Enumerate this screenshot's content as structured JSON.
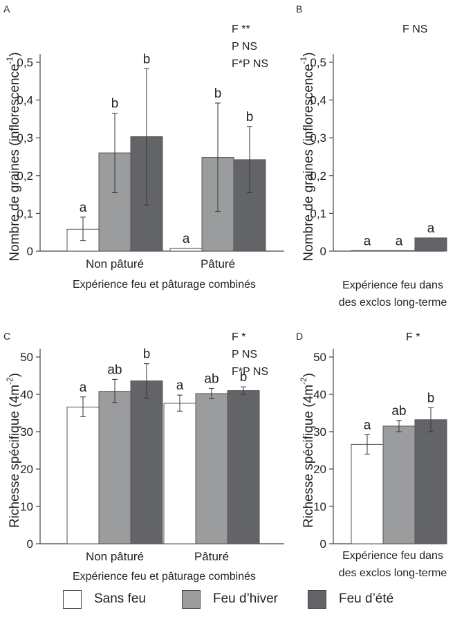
{
  "colors": {
    "sans_feu": "#ffffff",
    "feu_hiver": "#9b9c9e",
    "feu_ete": "#636467",
    "axis": "#444444",
    "bar_stroke": "#555555"
  },
  "legend": [
    {
      "name": "Sans feu",
      "color_key": "sans_feu"
    },
    {
      "name": "Feu d’hiver",
      "color_key": "feu_hiver"
    },
    {
      "name": "Feu d’été",
      "color_key": "feu_ete"
    }
  ],
  "chart_data": [
    {
      "panel": "A",
      "type": "bar",
      "ylabel": "Nombre de graines (inflorescence-1)",
      "ylabel_main": "Nombre de graines (inflorescence",
      "ylabel_sup": "-1",
      "ylabel_close": ")",
      "xlabel": "Expérience feu et pâturage combinés",
      "xlabel_lines": [
        "Expérience feu et pâturage combinés"
      ],
      "ylim": [
        0,
        0.5
      ],
      "yticks": [
        0,
        0.1,
        0.2,
        0.3,
        0.4,
        0.5
      ],
      "ytick_labels": [
        "0",
        "0,1",
        "0,2",
        "0,3",
        "0,4",
        "0,5"
      ],
      "stats": [
        "F **",
        "P NS",
        "F*P NS"
      ],
      "categories": [
        "Non pâturé",
        "Pâturé"
      ],
      "series": [
        {
          "name": "Sans feu",
          "values": [
            0.058,
            0.007
          ],
          "err_low": [
            0.028,
            0.0
          ],
          "err_high": [
            0.09,
            0.0
          ],
          "letters": [
            "a",
            "a"
          ]
        },
        {
          "name": "Feu d’hiver",
          "values": [
            0.26,
            0.248
          ],
          "err_low": [
            0.155,
            0.105
          ],
          "err_high": [
            0.365,
            0.392
          ],
          "letters": [
            "b",
            "b"
          ]
        },
        {
          "name": "Feu d’été",
          "values": [
            0.303,
            0.242
          ],
          "err_low": [
            0.122,
            0.155
          ],
          "err_high": [
            0.483,
            0.33
          ],
          "letters": [
            "b",
            "b"
          ]
        }
      ]
    },
    {
      "panel": "B",
      "type": "bar",
      "ylabel": "Nombre de graines (inflorescence-1)",
      "ylabel_main": "Nombre de graines (inflorescence",
      "ylabel_sup": "-1",
      "ylabel_close": ")",
      "xlabel": "Expérience feu dans des exclos long-terme",
      "xlabel_lines": [
        "Expérience feu dans",
        "des exclos long-terme"
      ],
      "ylim": [
        0,
        0.5
      ],
      "yticks": [
        0,
        0.1,
        0.2,
        0.3,
        0.4,
        0.5
      ],
      "ytick_labels": [
        "0",
        "0,1",
        "0,2",
        "0,3",
        "0,4",
        "0,5"
      ],
      "stats": [
        "F NS"
      ],
      "categories": [
        ""
      ],
      "series": [
        {
          "name": "Sans feu",
          "values": [
            0.001
          ],
          "err_low": [
            0.001
          ],
          "err_high": [
            0.001
          ],
          "letters": [
            "a"
          ]
        },
        {
          "name": "Feu d’hiver",
          "values": [
            0.001
          ],
          "err_low": [
            0.001
          ],
          "err_high": [
            0.001
          ],
          "letters": [
            "a"
          ]
        },
        {
          "name": "Feu d’été",
          "values": [
            0.035
          ],
          "err_low": [
            0.035
          ],
          "err_high": [
            0.035
          ],
          "letters": [
            "a"
          ]
        }
      ]
    },
    {
      "panel": "C",
      "type": "bar",
      "ylabel": "Richesse spécifique (4m-2)",
      "ylabel_main": "Richesse spécifique (4m",
      "ylabel_sup": "-2",
      "ylabel_close": ")",
      "xlabel": "Expérience feu et pâturage combinés",
      "xlabel_lines": [
        "Expérience feu et pâturage combinés"
      ],
      "ylim": [
        0,
        50
      ],
      "yticks": [
        0,
        10,
        20,
        30,
        40,
        50
      ],
      "ytick_labels": [
        "0",
        "10",
        "20",
        "30",
        "40",
        "50"
      ],
      "stats": [
        "F *",
        "P NS",
        "F*P NS"
      ],
      "categories": [
        "Non pâturé",
        "Pâturé"
      ],
      "series": [
        {
          "name": "Sans feu",
          "values": [
            36.6,
            37.6
          ],
          "err_low": [
            34.0,
            35.5
          ],
          "err_high": [
            39.3,
            39.8
          ],
          "letters": [
            "a",
            "a"
          ]
        },
        {
          "name": "Feu d’hiver",
          "values": [
            40.8,
            40.2
          ],
          "err_low": [
            37.8,
            38.8
          ],
          "err_high": [
            44.0,
            41.6
          ],
          "letters": [
            "ab",
            "ab"
          ]
        },
        {
          "name": "Feu d’été",
          "values": [
            43.6,
            41.0
          ],
          "err_low": [
            39.0,
            40.0
          ],
          "err_high": [
            48.2,
            42.0
          ],
          "letters": [
            "b",
            "b"
          ]
        }
      ]
    },
    {
      "panel": "D",
      "type": "bar",
      "ylabel": "Richesse spécifique (4m-2)",
      "ylabel_main": "Richesse spécifique (4m",
      "ylabel_sup": "-2",
      "ylabel_close": ")",
      "xlabel": "Expérience feu dans des exclos long-terme",
      "xlabel_lines": [
        "Expérience feu dans",
        "des exclos long-terme"
      ],
      "ylim": [
        0,
        50
      ],
      "yticks": [
        0,
        10,
        20,
        30,
        40,
        50
      ],
      "ytick_labels": [
        "0",
        "10",
        "20",
        "30",
        "40",
        "50"
      ],
      "stats": [
        "F *"
      ],
      "categories": [
        ""
      ],
      "series": [
        {
          "name": "Sans feu",
          "values": [
            26.6
          ],
          "err_low": [
            24.0
          ],
          "err_high": [
            29.2
          ],
          "letters": [
            "a"
          ]
        },
        {
          "name": "Feu d’hiver",
          "values": [
            31.5
          ],
          "err_low": [
            30.0
          ],
          "err_high": [
            33.0
          ],
          "letters": [
            "ab"
          ]
        },
        {
          "name": "Feu d’été",
          "values": [
            33.2
          ],
          "err_low": [
            30.0
          ],
          "err_high": [
            36.4
          ],
          "letters": [
            "b"
          ]
        }
      ]
    }
  ]
}
